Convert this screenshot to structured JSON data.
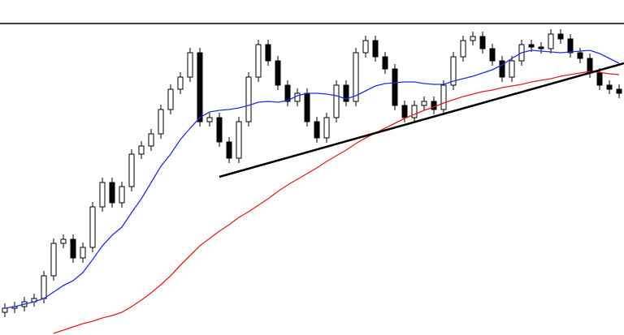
{
  "chart_data": {
    "type": "candlestick",
    "ylim": [
      0,
      413
    ],
    "xlim": [
      -0.5,
      63.5
    ],
    "up_color": "#ffffff",
    "down_color": "#000000",
    "outline_color": "#000000",
    "open": [
      28,
      33,
      35,
      41,
      45,
      73,
      113,
      118,
      95,
      108,
      158,
      188,
      163,
      183,
      223,
      233,
      248,
      278,
      303,
      318,
      348,
      263,
      268,
      238,
      218,
      263,
      318,
      358,
      338,
      308,
      288,
      298,
      263,
      243,
      268,
      308,
      288,
      348,
      363,
      343,
      328,
      283,
      268,
      283,
      288,
      278,
      308,
      343,
      363,
      368,
      353,
      338,
      318,
      338,
      358,
      355,
      353,
      371,
      365,
      348,
      341,
      323,
      308,
      303
    ],
    "high": [
      39,
      41,
      47,
      51,
      79,
      119,
      124,
      124,
      114,
      164,
      194,
      194,
      189,
      229,
      239,
      254,
      284,
      309,
      324,
      354,
      354,
      274,
      274,
      244,
      269,
      324,
      364,
      364,
      344,
      314,
      304,
      304,
      269,
      274,
      314,
      314,
      354,
      369,
      369,
      349,
      334,
      289,
      289,
      294,
      294,
      314,
      349,
      369,
      374,
      374,
      359,
      344,
      344,
      364,
      364,
      361,
      377,
      377,
      371,
      354,
      347,
      329,
      314,
      309
    ],
    "low": [
      22,
      27,
      29,
      35,
      39,
      67,
      107,
      89,
      89,
      102,
      152,
      157,
      157,
      177,
      217,
      227,
      242,
      272,
      297,
      312,
      257,
      257,
      232,
      212,
      212,
      257,
      312,
      332,
      302,
      282,
      282,
      257,
      237,
      237,
      262,
      282,
      282,
      342,
      337,
      322,
      277,
      262,
      262,
      277,
      272,
      272,
      302,
      337,
      357,
      347,
      332,
      312,
      312,
      332,
      349,
      347,
      347,
      359,
      342,
      335,
      317,
      302,
      297,
      292
    ],
    "close": [
      33,
      35,
      41,
      45,
      73,
      113,
      118,
      95,
      108,
      158,
      188,
      163,
      183,
      223,
      233,
      248,
      278,
      303,
      318,
      348,
      263,
      268,
      238,
      218,
      263,
      318,
      358,
      338,
      308,
      288,
      298,
      263,
      243,
      268,
      308,
      288,
      348,
      363,
      343,
      328,
      283,
      268,
      283,
      288,
      278,
      308,
      343,
      363,
      368,
      353,
      338,
      318,
      338,
      358,
      355,
      353,
      371,
      365,
      348,
      341,
      323,
      308,
      303,
      298
    ],
    "series": [
      {
        "color": "#1f2fe0",
        "values": [
          33,
          35,
          38,
          41,
          45,
          53,
          61,
          67,
          77,
          93,
          110,
          123,
          133,
          151,
          168,
          188,
          208,
          223,
          241,
          255,
          268,
          275,
          277,
          278,
          280,
          283,
          287,
          288,
          287,
          289,
          295,
          298,
          298,
          297,
          295,
          291,
          295,
          301,
          307,
          310,
          311,
          312,
          312,
          310,
          309,
          309,
          313,
          316,
          319,
          323,
          327,
          333,
          341,
          348,
          351,
          350,
          349,
          348,
          349,
          350,
          351,
          347,
          341,
          335
        ]
      },
      {
        "color": "#e01f1f",
        "values": [
          null,
          null,
          null,
          null,
          null,
          2,
          6,
          10,
          14,
          17,
          21,
          24,
          28,
          35,
          43,
          52,
          62,
          73,
          86,
          98,
          110,
          119,
          128,
          136,
          145,
          152,
          160,
          168,
          177,
          185,
          192,
          199,
          206,
          214,
          221,
          228,
          236,
          243,
          249,
          255,
          261,
          267,
          272,
          277,
          281,
          286,
          290,
          294,
          297,
          300,
          302,
          305,
          307,
          309,
          312,
          314,
          316,
          319,
          321,
          323,
          325,
          324,
          322,
          321
        ]
      }
    ],
    "trendline": {
      "x": [
        22,
        63.5
      ],
      "y": [
        195,
        335
      ],
      "color": "#000000"
    },
    "horizontal_line": {
      "value": 384,
      "color": "#000000"
    }
  }
}
